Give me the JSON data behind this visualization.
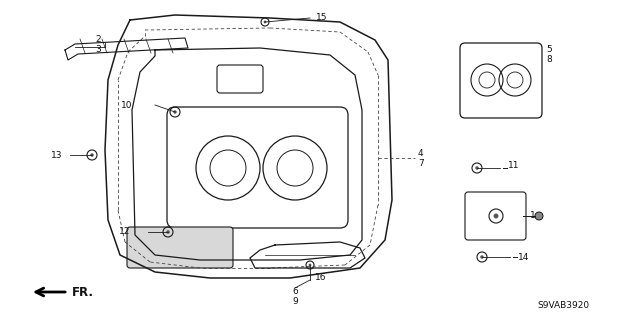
{
  "bg_color": "#ffffff",
  "diagram_code": "S9VAB3920",
  "line_color": "#1a1a1a",
  "text_color": "#111111",
  "figsize": [
    6.4,
    3.19
  ],
  "dpi": 100
}
